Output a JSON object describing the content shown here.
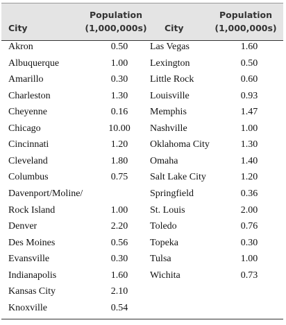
{
  "header": [
    [
      "City"
    ],
    [
      "Population",
      "(1,000,000s)"
    ],
    [
      "City"
    ],
    [
      "Population",
      "(1,000,000s)"
    ]
  ],
  "left": [
    {
      "city": [
        "Akron"
      ],
      "pop": "0.50"
    },
    {
      "city": [
        "Albuquerque"
      ],
      "pop": "1.00"
    },
    {
      "city": [
        "Amarillo"
      ],
      "pop": "0.30"
    },
    {
      "city": [
        "Charleston"
      ],
      "pop": "1.30"
    },
    {
      "city": [
        "Cheyenne"
      ],
      "pop": "0.16"
    },
    {
      "city": [
        "Chicago"
      ],
      "pop": "10.00"
    },
    {
      "city": [
        "Cincinnati"
      ],
      "pop": "1.20"
    },
    {
      "city": [
        "Cleveland"
      ],
      "pop": "1.80"
    },
    {
      "city": [
        "Columbus"
      ],
      "pop": "0.75"
    },
    {
      "city": [
        "Davenport/Moline/",
        "Rock Island"
      ],
      "pop": "1.00"
    },
    {
      "city": [
        "Denver"
      ],
      "pop": "2.20"
    },
    {
      "city": [
        "Des Moines"
      ],
      "pop": "0.56"
    },
    {
      "city": [
        "Evansville"
      ],
      "pop": "0.30"
    },
    {
      "city": [
        "Indianapolis"
      ],
      "pop": "1.60"
    },
    {
      "city": [
        "Kansas City"
      ],
      "pop": "2.10"
    },
    {
      "city": [
        "Knoxville"
      ],
      "pop": "0.54"
    }
  ],
  "right": [
    {
      "city": [
        "Las Vegas"
      ],
      "pop": "1.60"
    },
    {
      "city": [
        "Lexington"
      ],
      "pop": "0.50"
    },
    {
      "city": [
        "Little Rock"
      ],
      "pop": "0.60"
    },
    {
      "city": [
        "Louisville"
      ],
      "pop": "0.93"
    },
    {
      "city": [
        "Memphis"
      ],
      "pop": "1.47"
    },
    {
      "city": [
        "Nashville"
      ],
      "pop": "1.00"
    },
    {
      "city": [
        "Oklahoma City"
      ],
      "pop": "1.30"
    },
    {
      "city": [
        "Omaha"
      ],
      "pop": "1.40"
    },
    {
      "city": [
        "Salt Lake City"
      ],
      "pop": "1.20"
    },
    {
      "city": [
        "Springfield"
      ],
      "pop": "0.36"
    },
    {
      "city": [
        "St. Louis"
      ],
      "pop": "2.00"
    },
    {
      "city": [
        "Toledo"
      ],
      "pop": "0.76"
    },
    {
      "city": [
        "Topeka"
      ],
      "pop": "0.30"
    },
    {
      "city": [
        "Tulsa"
      ],
      "pop": "1.00"
    },
    {
      "city": [
        "Wichita"
      ],
      "pop": "0.73"
    }
  ]
}
